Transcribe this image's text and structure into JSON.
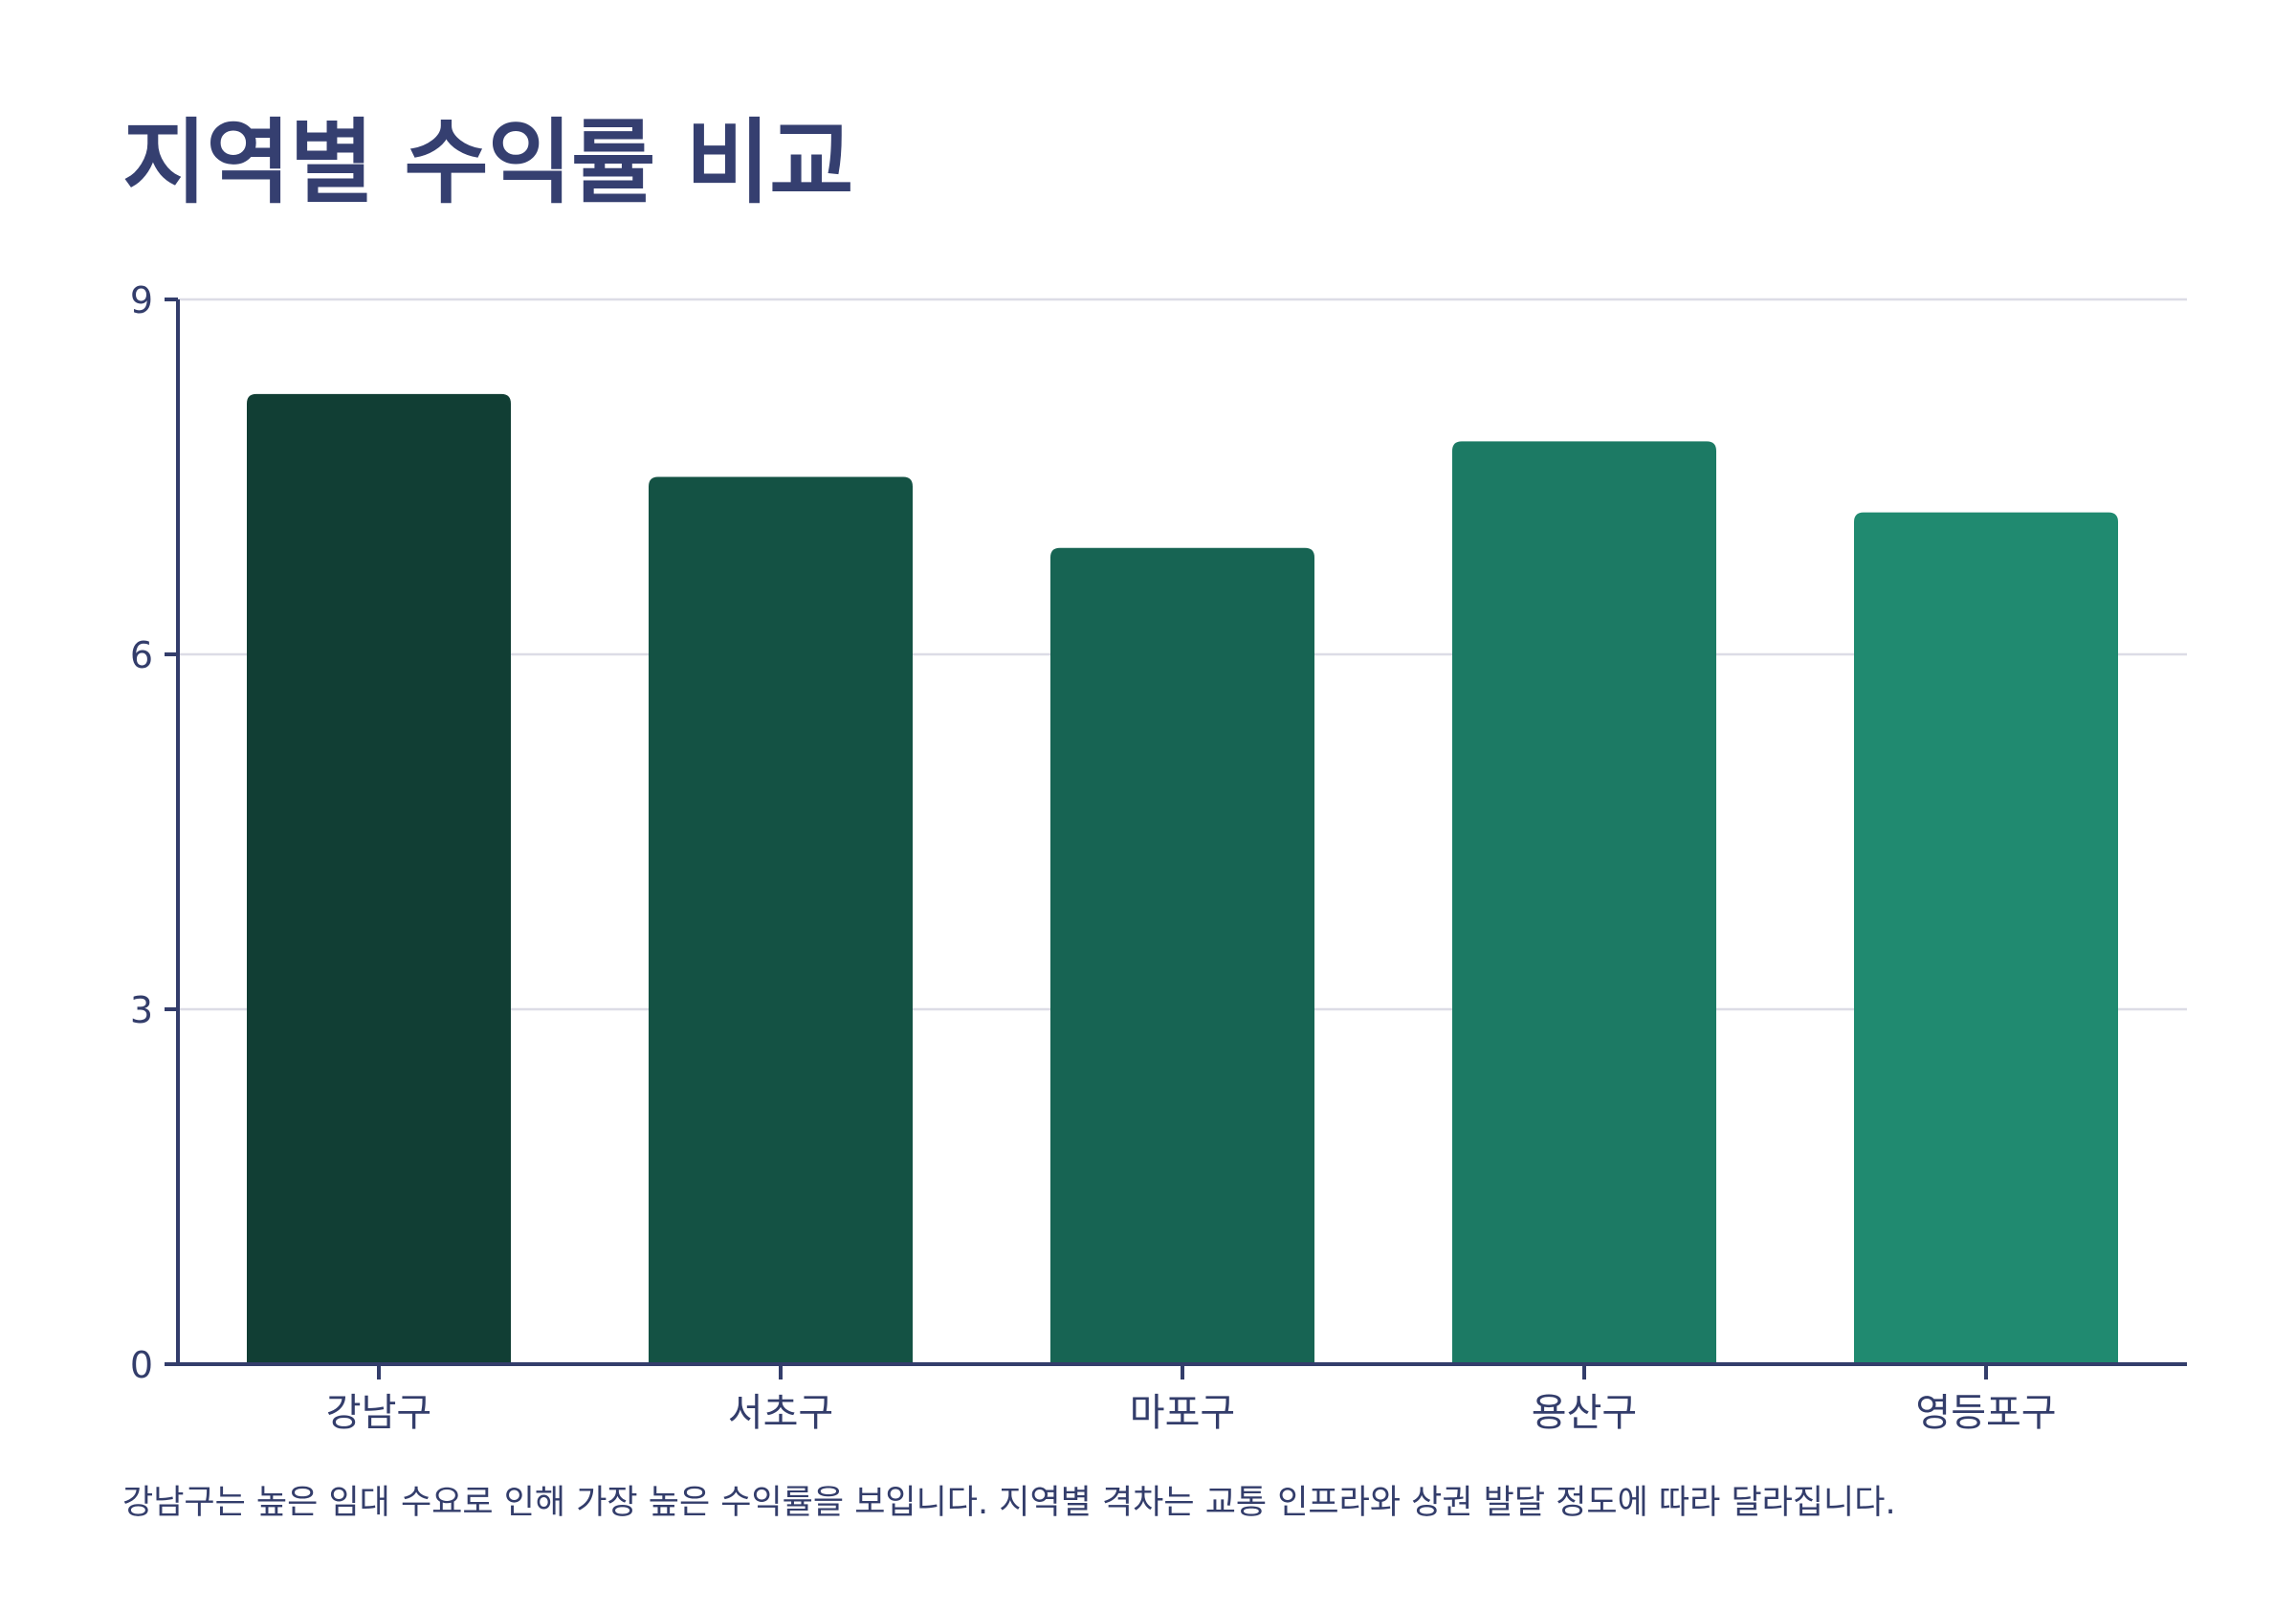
{
  "chart_data": {
    "type": "bar",
    "title": "지역별 수익률 비교",
    "categories": [
      "강남구",
      "서초구",
      "마포구",
      "용산구",
      "영등포구"
    ],
    "values": [
      8.2,
      7.5,
      6.9,
      7.8,
      7.2
    ],
    "xlabel": "",
    "ylabel": "",
    "ylim": [
      0,
      9
    ],
    "yticks": [
      0,
      3,
      6,
      9
    ],
    "grid": true,
    "legend": "none",
    "bar_colors": [
      "#113e34",
      "#145244",
      "#176453",
      "#1c7a64",
      "#208a70"
    ]
  },
  "caption": "강남구는 높은 임대 수요로 인해 가장 높은 수익률을 보입니다. 지역별 격차는 교통 인프라와 상권 발달 정도에 따라 달라집니다.",
  "colors": {
    "axis": "#333d6b",
    "grid": "#dcdce6",
    "title": "#353f70"
  }
}
